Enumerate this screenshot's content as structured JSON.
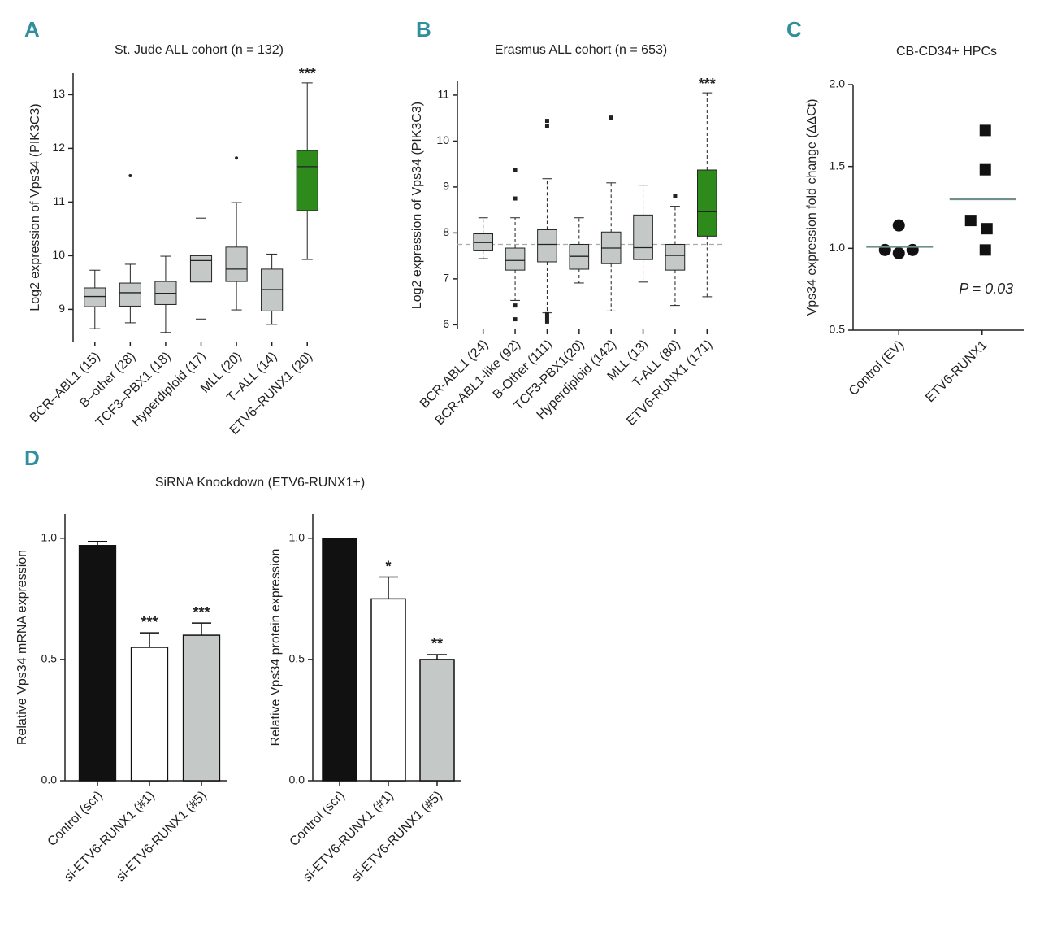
{
  "chart_data": [
    {
      "type": "box",
      "panel_label": "A",
      "title": "St. Jude ALL cohort (n = 132)",
      "y_label": "Log2 expression of Vps34 (PIK3C3)",
      "categories": [
        "BCR–ABL1 (15)",
        "B–other (28)",
        "TCF3–PBX1 (18)",
        "Hyperdiploid (17)",
        "MLL (20)",
        "T–ALL (14)",
        "ETV6–RUNX1 (20)"
      ],
      "boxes": [
        {
          "low": 8.64,
          "q1": 9.05,
          "median": 9.24,
          "q3": 9.4,
          "high": 9.73,
          "outliers": []
        },
        {
          "low": 8.75,
          "q1": 9.06,
          "median": 9.31,
          "q3": 9.49,
          "high": 9.84,
          "outliers": [
            11.49
          ]
        },
        {
          "low": 8.57,
          "q1": 9.09,
          "median": 9.3,
          "q3": 9.52,
          "high": 9.99,
          "outliers": []
        },
        {
          "low": 8.82,
          "q1": 9.51,
          "median": 9.91,
          "q3": 10.0,
          "high": 10.7,
          "outliers": []
        },
        {
          "low": 8.99,
          "q1": 9.52,
          "median": 9.75,
          "q3": 10.16,
          "high": 10.99,
          "outliers": [
            11.82
          ]
        },
        {
          "low": 8.72,
          "q1": 8.97,
          "median": 9.37,
          "q3": 9.75,
          "high": 10.03,
          "outliers": []
        },
        {
          "low": 9.93,
          "q1": 10.84,
          "median": 11.66,
          "q3": 11.96,
          "high": 13.22,
          "outliers": []
        }
      ],
      "colors": [
        "#c4c8c7",
        "#c4c8c7",
        "#c4c8c7",
        "#c4c8c7",
        "#c4c8c7",
        "#c4c8c7",
        "#2f8a1c"
      ],
      "annotations": [
        null,
        null,
        null,
        null,
        null,
        null,
        "***"
      ],
      "whisker_style": "solid",
      "outlier_marker": "circle",
      "ylim": [
        8.4,
        13.4
      ],
      "yticks": [
        9,
        10,
        11,
        12,
        13
      ]
    },
    {
      "type": "box",
      "panel_label": "B",
      "title": "Erasmus ALL cohort (n = 653)",
      "y_label": "Log2 expression of Vps34 (PIK3C3)",
      "categories": [
        "BCR-ABL1 (24)",
        "BCR-ABL1-like (92)",
        "B-Other (111)",
        "TCF3-PBX1(20)",
        "Hyperdiploid (142)",
        "MLL (13)",
        "T-ALL (80)",
        "ETV6-RUNX1 (171)"
      ],
      "boxes": [
        {
          "low": 7.44,
          "q1": 7.61,
          "median": 7.79,
          "q3": 7.98,
          "high": 8.33,
          "outliers": []
        },
        {
          "low": 6.53,
          "q1": 7.19,
          "median": 7.4,
          "q3": 7.67,
          "high": 8.33,
          "outliers": [
            9.37,
            8.75,
            6.42,
            6.12
          ]
        },
        {
          "low": 6.26,
          "q1": 7.37,
          "median": 7.75,
          "q3": 8.07,
          "high": 9.18,
          "outliers": [
            10.44,
            10.33,
            6.23,
            6.14,
            6.07
          ]
        },
        {
          "low": 6.91,
          "q1": 7.21,
          "median": 7.49,
          "q3": 7.75,
          "high": 8.33,
          "outliers": []
        },
        {
          "low": 6.3,
          "q1": 7.33,
          "median": 7.67,
          "q3": 8.02,
          "high": 9.09,
          "outliers": [
            10.51
          ]
        },
        {
          "low": 6.93,
          "q1": 7.42,
          "median": 7.68,
          "q3": 8.39,
          "high": 9.04,
          "outliers": []
        },
        {
          "low": 6.42,
          "q1": 7.19,
          "median": 7.51,
          "q3": 7.75,
          "high": 8.58,
          "outliers": [
            8.81
          ]
        },
        {
          "low": 6.61,
          "q1": 7.93,
          "median": 8.46,
          "q3": 9.37,
          "high": 11.05,
          "outliers": []
        }
      ],
      "colors": [
        "#c4c8c7",
        "#c4c8c7",
        "#c4c8c7",
        "#c4c8c7",
        "#c4c8c7",
        "#c4c8c7",
        "#c4c8c7",
        "#2f8a1c"
      ],
      "annotations": [
        null,
        null,
        null,
        null,
        null,
        null,
        null,
        "***"
      ],
      "whisker_style": "dashed",
      "outlier_marker": "square",
      "reference_line": 7.75,
      "ylim": [
        5.9,
        11.3
      ],
      "yticks": [
        6,
        7,
        8,
        9,
        10,
        11
      ]
    },
    {
      "type": "dot",
      "panel_label": "C",
      "title": "CB-CD34+ HPCs",
      "y_label": "Vps34 expression fold change (ΔΔCt)",
      "categories": [
        "Control (EV)",
        "ETV6-RUNX1"
      ],
      "groups": [
        {
          "values": [
            1.14,
            0.99,
            0.97,
            0.99
          ],
          "mean": 1.01,
          "marker": "circle"
        },
        {
          "values": [
            1.72,
            1.48,
            1.17,
            1.12,
            0.99
          ],
          "mean": 1.3,
          "marker": "square"
        }
      ],
      "mean_color": "#6f8f8c",
      "annotation": "P = 0.03",
      "ylim": [
        0.5,
        2.0
      ],
      "yticks": [
        {
          "value": 0.5,
          "label": "0.5"
        },
        {
          "value": 1.0,
          "label": "1.0"
        },
        {
          "value": 1.5,
          "label": "1.5"
        },
        {
          "value": 2.0,
          "label": "2.0"
        }
      ]
    },
    {
      "type": "bar",
      "panel_label": "D",
      "title": "SiRNA Knockdown (ETV6-RUNX1+)",
      "y_label": "Relative Vps34 mRNA expression",
      "categories": [
        "Control (scr)",
        "si-ETV6-RUNX1 (#1)",
        "si-ETV6-RUNX1 (#5)"
      ],
      "values": [
        0.97,
        0.55,
        0.6
      ],
      "errors": [
        0.017,
        0.06,
        0.05
      ],
      "colors": [
        "#111111",
        "#ffffff",
        "#c4c8c7"
      ],
      "annotations": [
        null,
        "***",
        "***"
      ],
      "ylim": [
        0,
        1.1
      ],
      "yticks": [
        {
          "value": 0,
          "label": "0.0"
        },
        {
          "value": 0.5,
          "label": "0.5"
        },
        {
          "value": 1.0,
          "label": "1.0"
        }
      ]
    },
    {
      "type": "bar",
      "y_label": "Relative Vps34 protein expression",
      "categories": [
        "Control (scr)",
        "si-ETV6-RUNX1 (#1)",
        "si-ETV6-RUNX1 (#5)"
      ],
      "values": [
        1.0,
        0.75,
        0.5
      ],
      "errors": [
        0,
        0.09,
        0.02
      ],
      "colors": [
        "#111111",
        "#ffffff",
        "#c4c8c7"
      ],
      "annotations": [
        null,
        "*",
        "**"
      ],
      "ylim": [
        0,
        1.1
      ],
      "yticks": [
        {
          "value": 0,
          "label": "0.0"
        },
        {
          "value": 0.5,
          "label": "0.5"
        },
        {
          "value": 1.0,
          "label": "1.0"
        }
      ]
    }
  ]
}
